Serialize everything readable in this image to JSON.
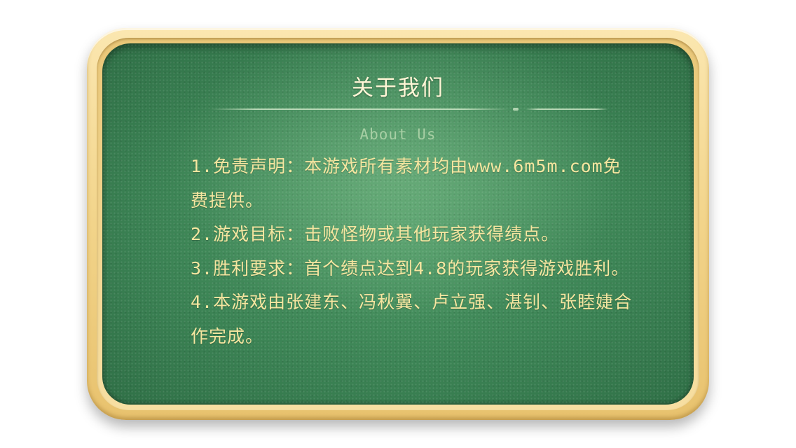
{
  "panel": {
    "title": "关于我们",
    "subtitle": "About Us",
    "items": [
      "1.免责声明：本游戏所有素材均由www.6m5m.com免费提供。",
      "2.游戏目标：击败怪物或其他玩家获得绩点。",
      "3.胜利要求：首个绩点达到4.8的玩家获得游戏胜利。",
      "4.本游戏由张建东、冯秋翼、卢立强、湛钊、张睦婕合作完成。"
    ]
  },
  "colors": {
    "frame": "#f2d48a",
    "board": "#3c8455",
    "title_text": "#fff6d6",
    "subtitle_text": "#a7cfa4",
    "body_text": "#f5e6a0"
  }
}
